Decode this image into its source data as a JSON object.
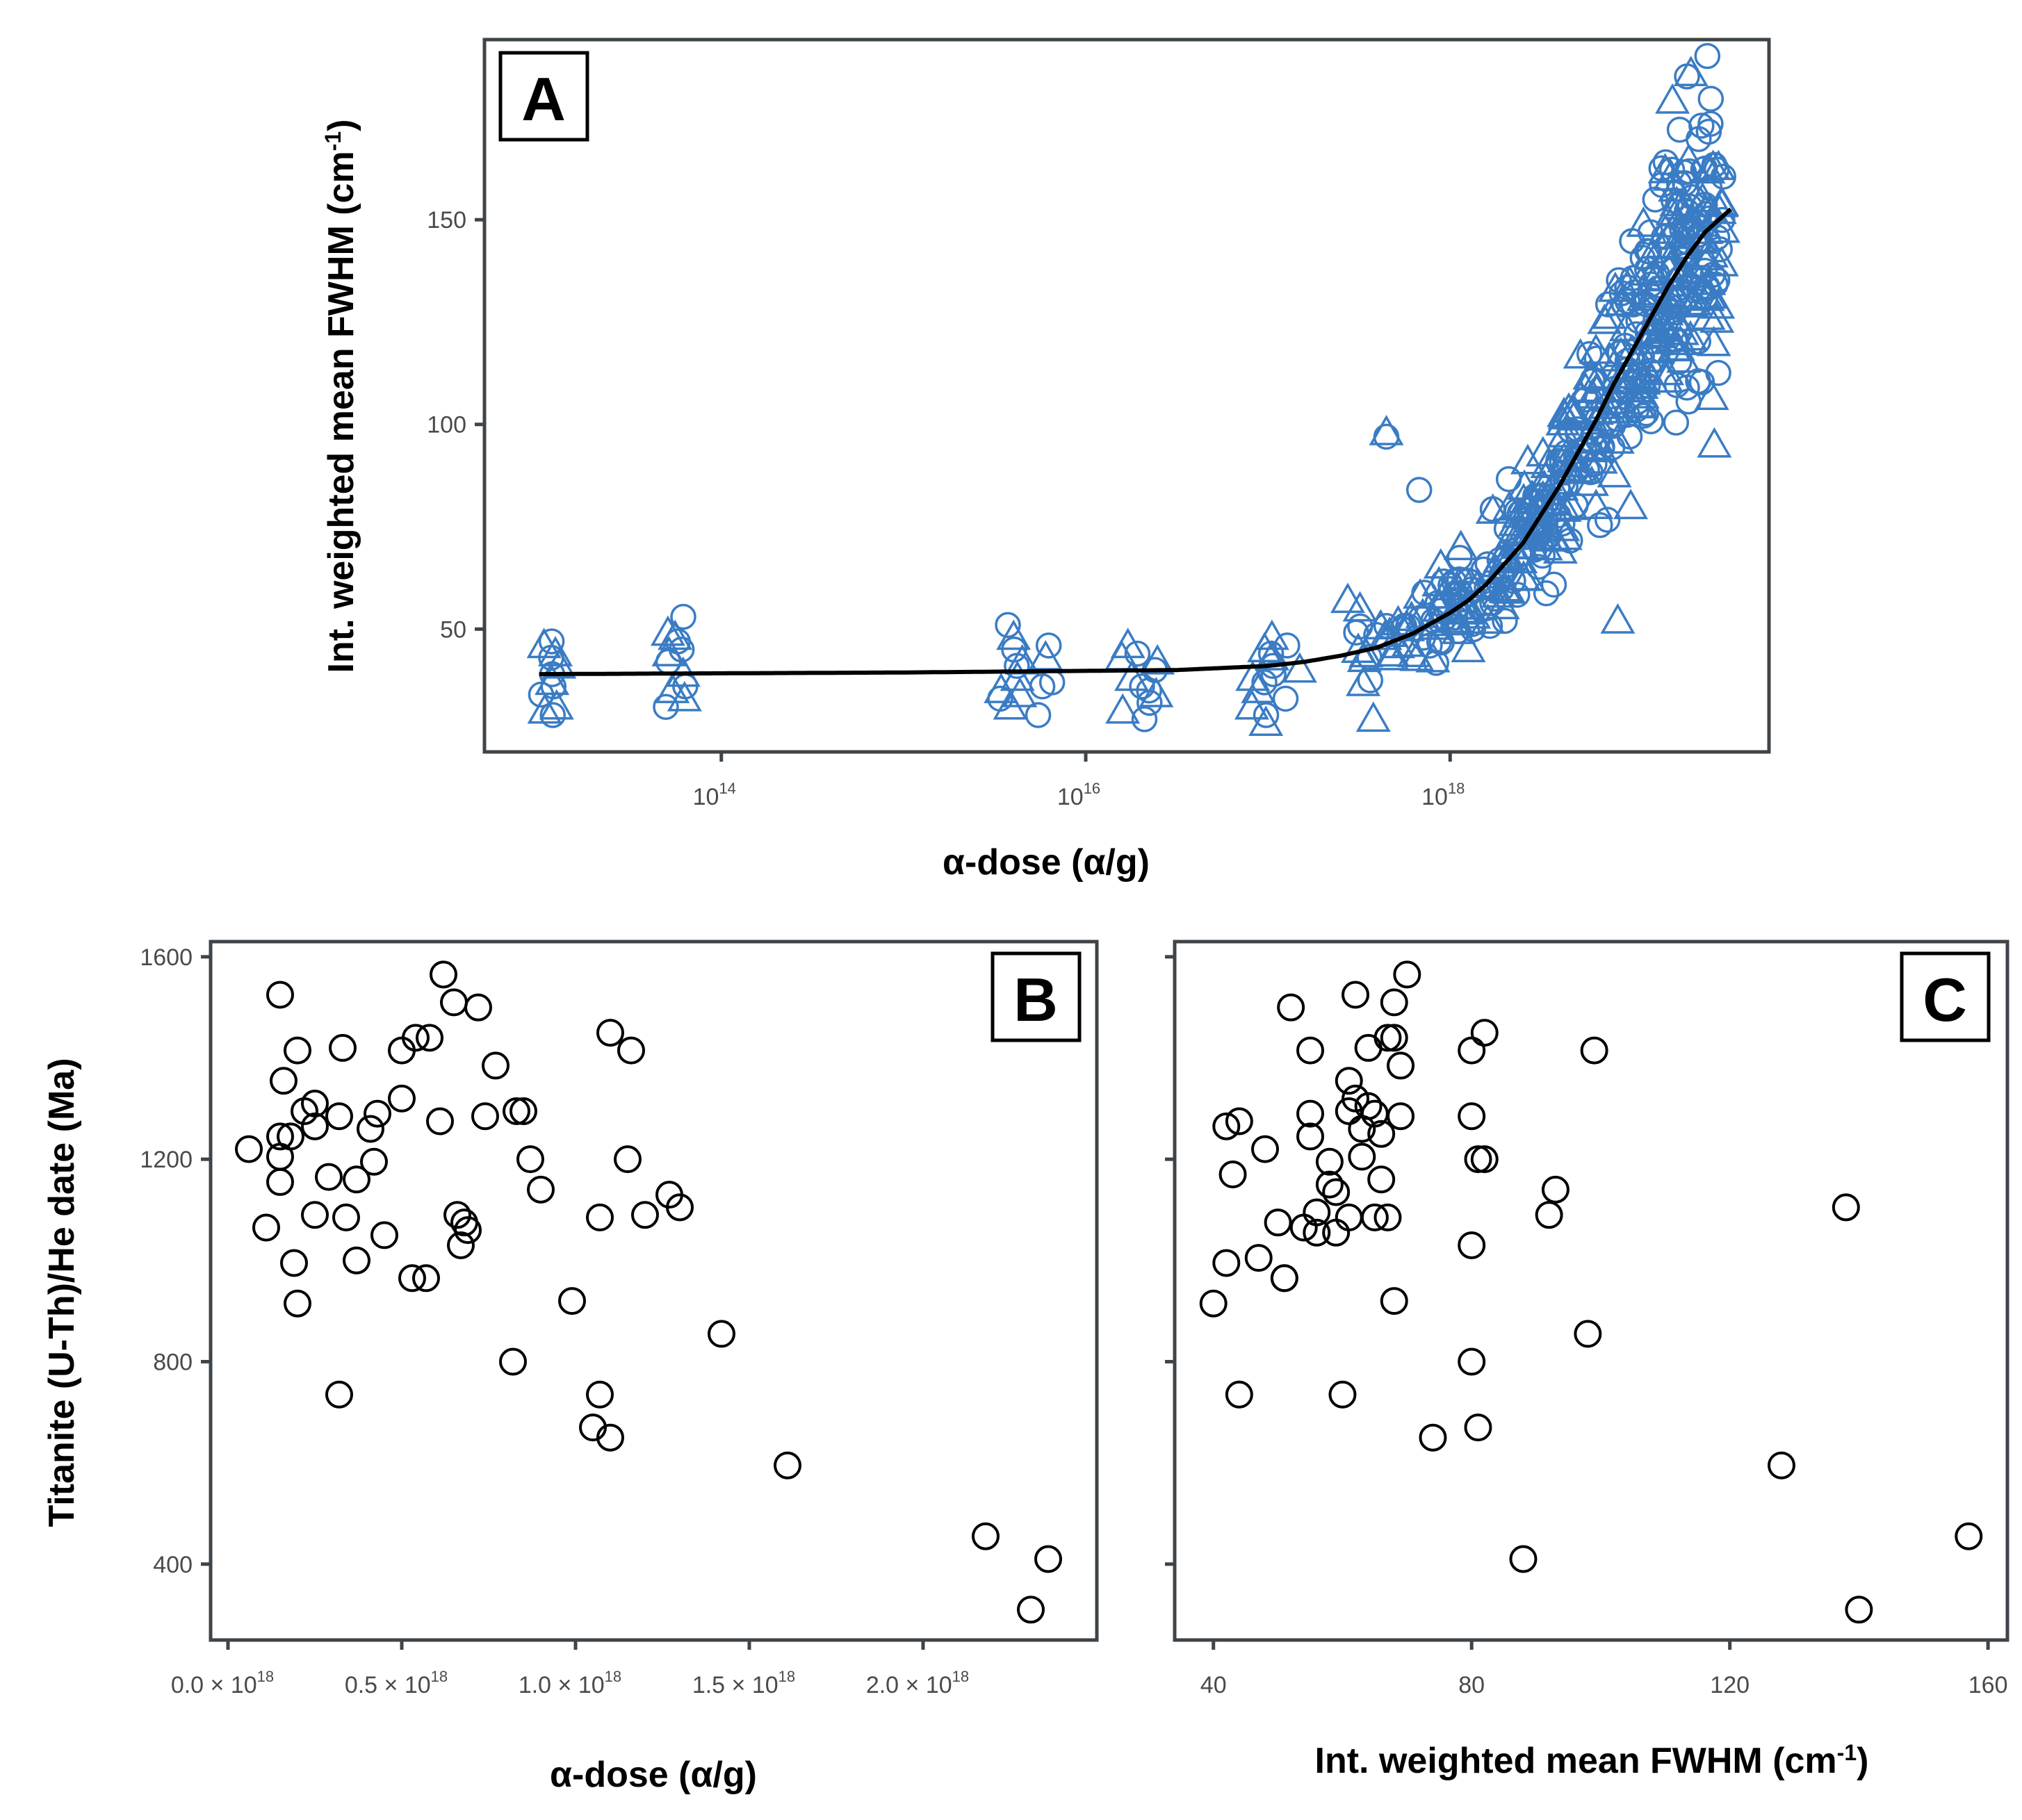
{
  "chart_data": [
    {
      "panel": "A",
      "type": "scatter",
      "xscale": "log10",
      "xlabel": "α-dose (α/g)",
      "ylabel": "Int. weighted mean FWHM (cm-1)",
      "xlim_log10": [
        12.7,
        19.75
      ],
      "ylim": [
        20,
        194
      ],
      "x_ticks_log10": [
        14,
        16,
        18
      ],
      "y_ticks": [
        50,
        100,
        150
      ],
      "marker_color": "#3a7cc4",
      "fit_color": "#000000",
      "fit_line": {
        "log10_x": [
          13.0,
          14.0,
          15.0,
          16.0,
          16.5,
          17.0,
          17.2,
          17.4,
          17.6,
          17.8,
          18.0,
          18.1,
          18.2,
          18.3,
          18.4,
          18.5,
          18.6,
          18.7,
          18.8,
          18.9,
          19.0,
          19.1,
          19.2,
          19.3,
          19.4,
          19.5,
          19.55
        ],
        "y": [
          39.0,
          39.2,
          39.4,
          39.8,
          40.0,
          41.0,
          42.0,
          43.5,
          45.5,
          49.0,
          54.0,
          57.0,
          61.0,
          66.0,
          71.0,
          78.0,
          85.0,
          93.0,
          101.0,
          110.0,
          118.0,
          126.0,
          134.0,
          141.0,
          147.0,
          151.0,
          153.0
        ]
      },
      "clusters": [
        {
          "log10_x": 13.05,
          "spread": 0.12,
          "y": [
            47,
            46,
            43,
            41,
            39,
            37,
            34,
            31,
            29,
            44,
            36,
            30
          ]
        },
        {
          "log10_x": 13.75,
          "spread": 0.14,
          "y": [
            53,
            49,
            47,
            44,
            42,
            39,
            36,
            33,
            31,
            48,
            45,
            35
          ]
        },
        {
          "log10_x": 15.65,
          "spread": 0.35,
          "y": [
            51,
            48,
            46,
            43,
            41,
            38,
            36,
            35,
            33,
            31,
            45,
            42,
            37,
            34,
            29
          ]
        },
        {
          "log10_x": 16.3,
          "spread": 0.25,
          "y": [
            46,
            44,
            42,
            40,
            38,
            36,
            34,
            32,
            30,
            28,
            43,
            35
          ]
        },
        {
          "log10_x": 17.05,
          "spread": 0.28,
          "y": [
            48,
            46,
            45,
            44,
            43,
            41,
            40,
            39,
            38,
            37,
            35,
            33,
            31,
            29,
            27
          ]
        }
      ],
      "dense_region": {
        "log10_x_range": [
          17.4,
          19.5
        ],
        "count": 480,
        "residual_sd_frac": 0.11
      },
      "outliers": [
        {
          "log10_x": 17.65,
          "y": 97
        },
        {
          "log10_x": 17.65,
          "y": 98
        },
        {
          "log10_x": 17.83,
          "y": 84
        },
        {
          "log10_x": 18.1,
          "y": 45
        },
        {
          "log10_x": 18.3,
          "y": 52
        },
        {
          "log10_x": 18.92,
          "y": 52
        },
        {
          "log10_x": 19.3,
          "y": 185
        },
        {
          "log10_x": 19.22,
          "y": 179
        },
        {
          "log10_x": 19.26,
          "y": 172
        },
        {
          "log10_x": 19.18,
          "y": 162
        },
        {
          "log10_x": 19.35,
          "y": 149
        },
        {
          "log10_x": 19.08,
          "y": 137
        },
        {
          "log10_x": 19.4,
          "y": 131
        },
        {
          "log10_x": 19.45,
          "y": 95
        },
        {
          "log10_x": 19.3,
          "y": 109
        }
      ]
    },
    {
      "panel": "B",
      "type": "scatter",
      "xlabel": "α-dose (α/g)",
      "ylabel": "Titanite (U-Th)/He date (Ma)",
      "xlim": [
        -0.05,
        2.5
      ],
      "ylim": [
        250,
        1630
      ],
      "x_ticks": [
        0.0,
        0.5,
        1.0,
        1.5,
        2.0
      ],
      "x_tick_labels": [
        "0.0 × 10",
        "0.5 × 10",
        "1.0 × 10",
        "1.5 × 10",
        "2.0 × 10"
      ],
      "x_tick_exponent": "18",
      "y_ticks": [
        400,
        800,
        1200,
        1600
      ],
      "x_unit": "×10^18 α/g",
      "points": [
        [
          0.06,
          1220
        ],
        [
          0.11,
          1065
        ],
        [
          0.15,
          1525
        ],
        [
          0.16,
          1355
        ],
        [
          0.15,
          1245
        ],
        [
          0.15,
          1205
        ],
        [
          0.15,
          1155
        ],
        [
          0.18,
          1245
        ],
        [
          0.19,
          995
        ],
        [
          0.2,
          1415
        ],
        [
          0.2,
          915
        ],
        [
          0.22,
          1295
        ],
        [
          0.25,
          1310
        ],
        [
          0.25,
          1265
        ],
        [
          0.25,
          1090
        ],
        [
          0.29,
          1165
        ],
        [
          0.32,
          735
        ],
        [
          0.33,
          1420
        ],
        [
          0.32,
          1285
        ],
        [
          0.34,
          1085
        ],
        [
          0.37,
          1000
        ],
        [
          0.37,
          1160
        ],
        [
          0.41,
          1260
        ],
        [
          0.42,
          1195
        ],
        [
          0.43,
          1290
        ],
        [
          0.45,
          1050
        ],
        [
          0.5,
          1415
        ],
        [
          0.5,
          1320
        ],
        [
          0.53,
          965
        ],
        [
          0.54,
          1440
        ],
        [
          0.57,
          965
        ],
        [
          0.58,
          1440
        ],
        [
          0.61,
          1275
        ],
        [
          0.62,
          1565
        ],
        [
          0.65,
          1510
        ],
        [
          0.66,
          1090
        ],
        [
          0.67,
          1030
        ],
        [
          0.68,
          1075
        ],
        [
          0.69,
          1060
        ],
        [
          0.72,
          1500
        ],
        [
          0.74,
          1285
        ],
        [
          0.77,
          1385
        ],
        [
          0.82,
          800
        ],
        [
          0.83,
          1295
        ],
        [
          0.85,
          1295
        ],
        [
          0.87,
          1200
        ],
        [
          0.9,
          1140
        ],
        [
          0.99,
          920
        ],
        [
          1.05,
          670
        ],
        [
          1.07,
          735
        ],
        [
          1.07,
          1085
        ],
        [
          1.1,
          1450
        ],
        [
          1.1,
          650
        ],
        [
          1.15,
          1200
        ],
        [
          1.16,
          1415
        ],
        [
          1.2,
          1090
        ],
        [
          1.27,
          1130
        ],
        [
          1.3,
          1105
        ],
        [
          1.42,
          855
        ],
        [
          1.61,
          595
        ],
        [
          2.18,
          455
        ],
        [
          2.31,
          310
        ],
        [
          2.36,
          410
        ]
      ]
    },
    {
      "panel": "C",
      "type": "scatter",
      "xlabel": "Int. weighted mean FWHM (cm-1)",
      "xlim": [
        34,
        163
      ],
      "ylim": [
        250,
        1630
      ],
      "x_ticks": [
        40,
        80,
        120,
        160
      ],
      "y_ticks": [
        400,
        800,
        1200,
        1600
      ],
      "points": [
        [
          40,
          915
        ],
        [
          42,
          1265
        ],
        [
          42,
          995
        ],
        [
          43,
          1170
        ],
        [
          44,
          735
        ],
        [
          44,
          1275
        ],
        [
          47,
          1005
        ],
        [
          48,
          1220
        ],
        [
          50,
          1075
        ],
        [
          51,
          965
        ],
        [
          51,
          965
        ],
        [
          52,
          1500
        ],
        [
          54,
          1065
        ],
        [
          55,
          1415
        ],
        [
          55,
          1290
        ],
        [
          55,
          1245
        ],
        [
          56,
          1095
        ],
        [
          56,
          1055
        ],
        [
          58,
          1195
        ],
        [
          58,
          1150
        ],
        [
          59,
          1055
        ],
        [
          59,
          1135
        ],
        [
          60,
          735
        ],
        [
          61,
          1355
        ],
        [
          61,
          1295
        ],
        [
          61,
          1085
        ],
        [
          62,
          1525
        ],
        [
          62,
          1320
        ],
        [
          63,
          1260
        ],
        [
          63,
          1205
        ],
        [
          64,
          1420
        ],
        [
          64,
          1305
        ],
        [
          65,
          1290
        ],
        [
          65,
          1085
        ],
        [
          66,
          1250
        ],
        [
          66,
          1160
        ],
        [
          67,
          1440
        ],
        [
          67,
          1085
        ],
        [
          68,
          1440
        ],
        [
          68,
          1510
        ],
        [
          68,
          920
        ],
        [
          69,
          1285
        ],
        [
          69,
          1385
        ],
        [
          70,
          1565
        ],
        [
          74,
          650
        ],
        [
          80,
          1285
        ],
        [
          80,
          1030
        ],
        [
          80,
          1415
        ],
        [
          80,
          800
        ],
        [
          81,
          1200
        ],
        [
          81,
          670
        ],
        [
          82,
          1200
        ],
        [
          82,
          1450
        ],
        [
          88,
          410
        ],
        [
          92,
          1090
        ],
        [
          93,
          1140
        ],
        [
          98,
          855
        ],
        [
          99,
          1415
        ],
        [
          128,
          595
        ],
        [
          138,
          1105
        ],
        [
          140,
          310
        ],
        [
          157,
          455
        ]
      ]
    }
  ]
}
